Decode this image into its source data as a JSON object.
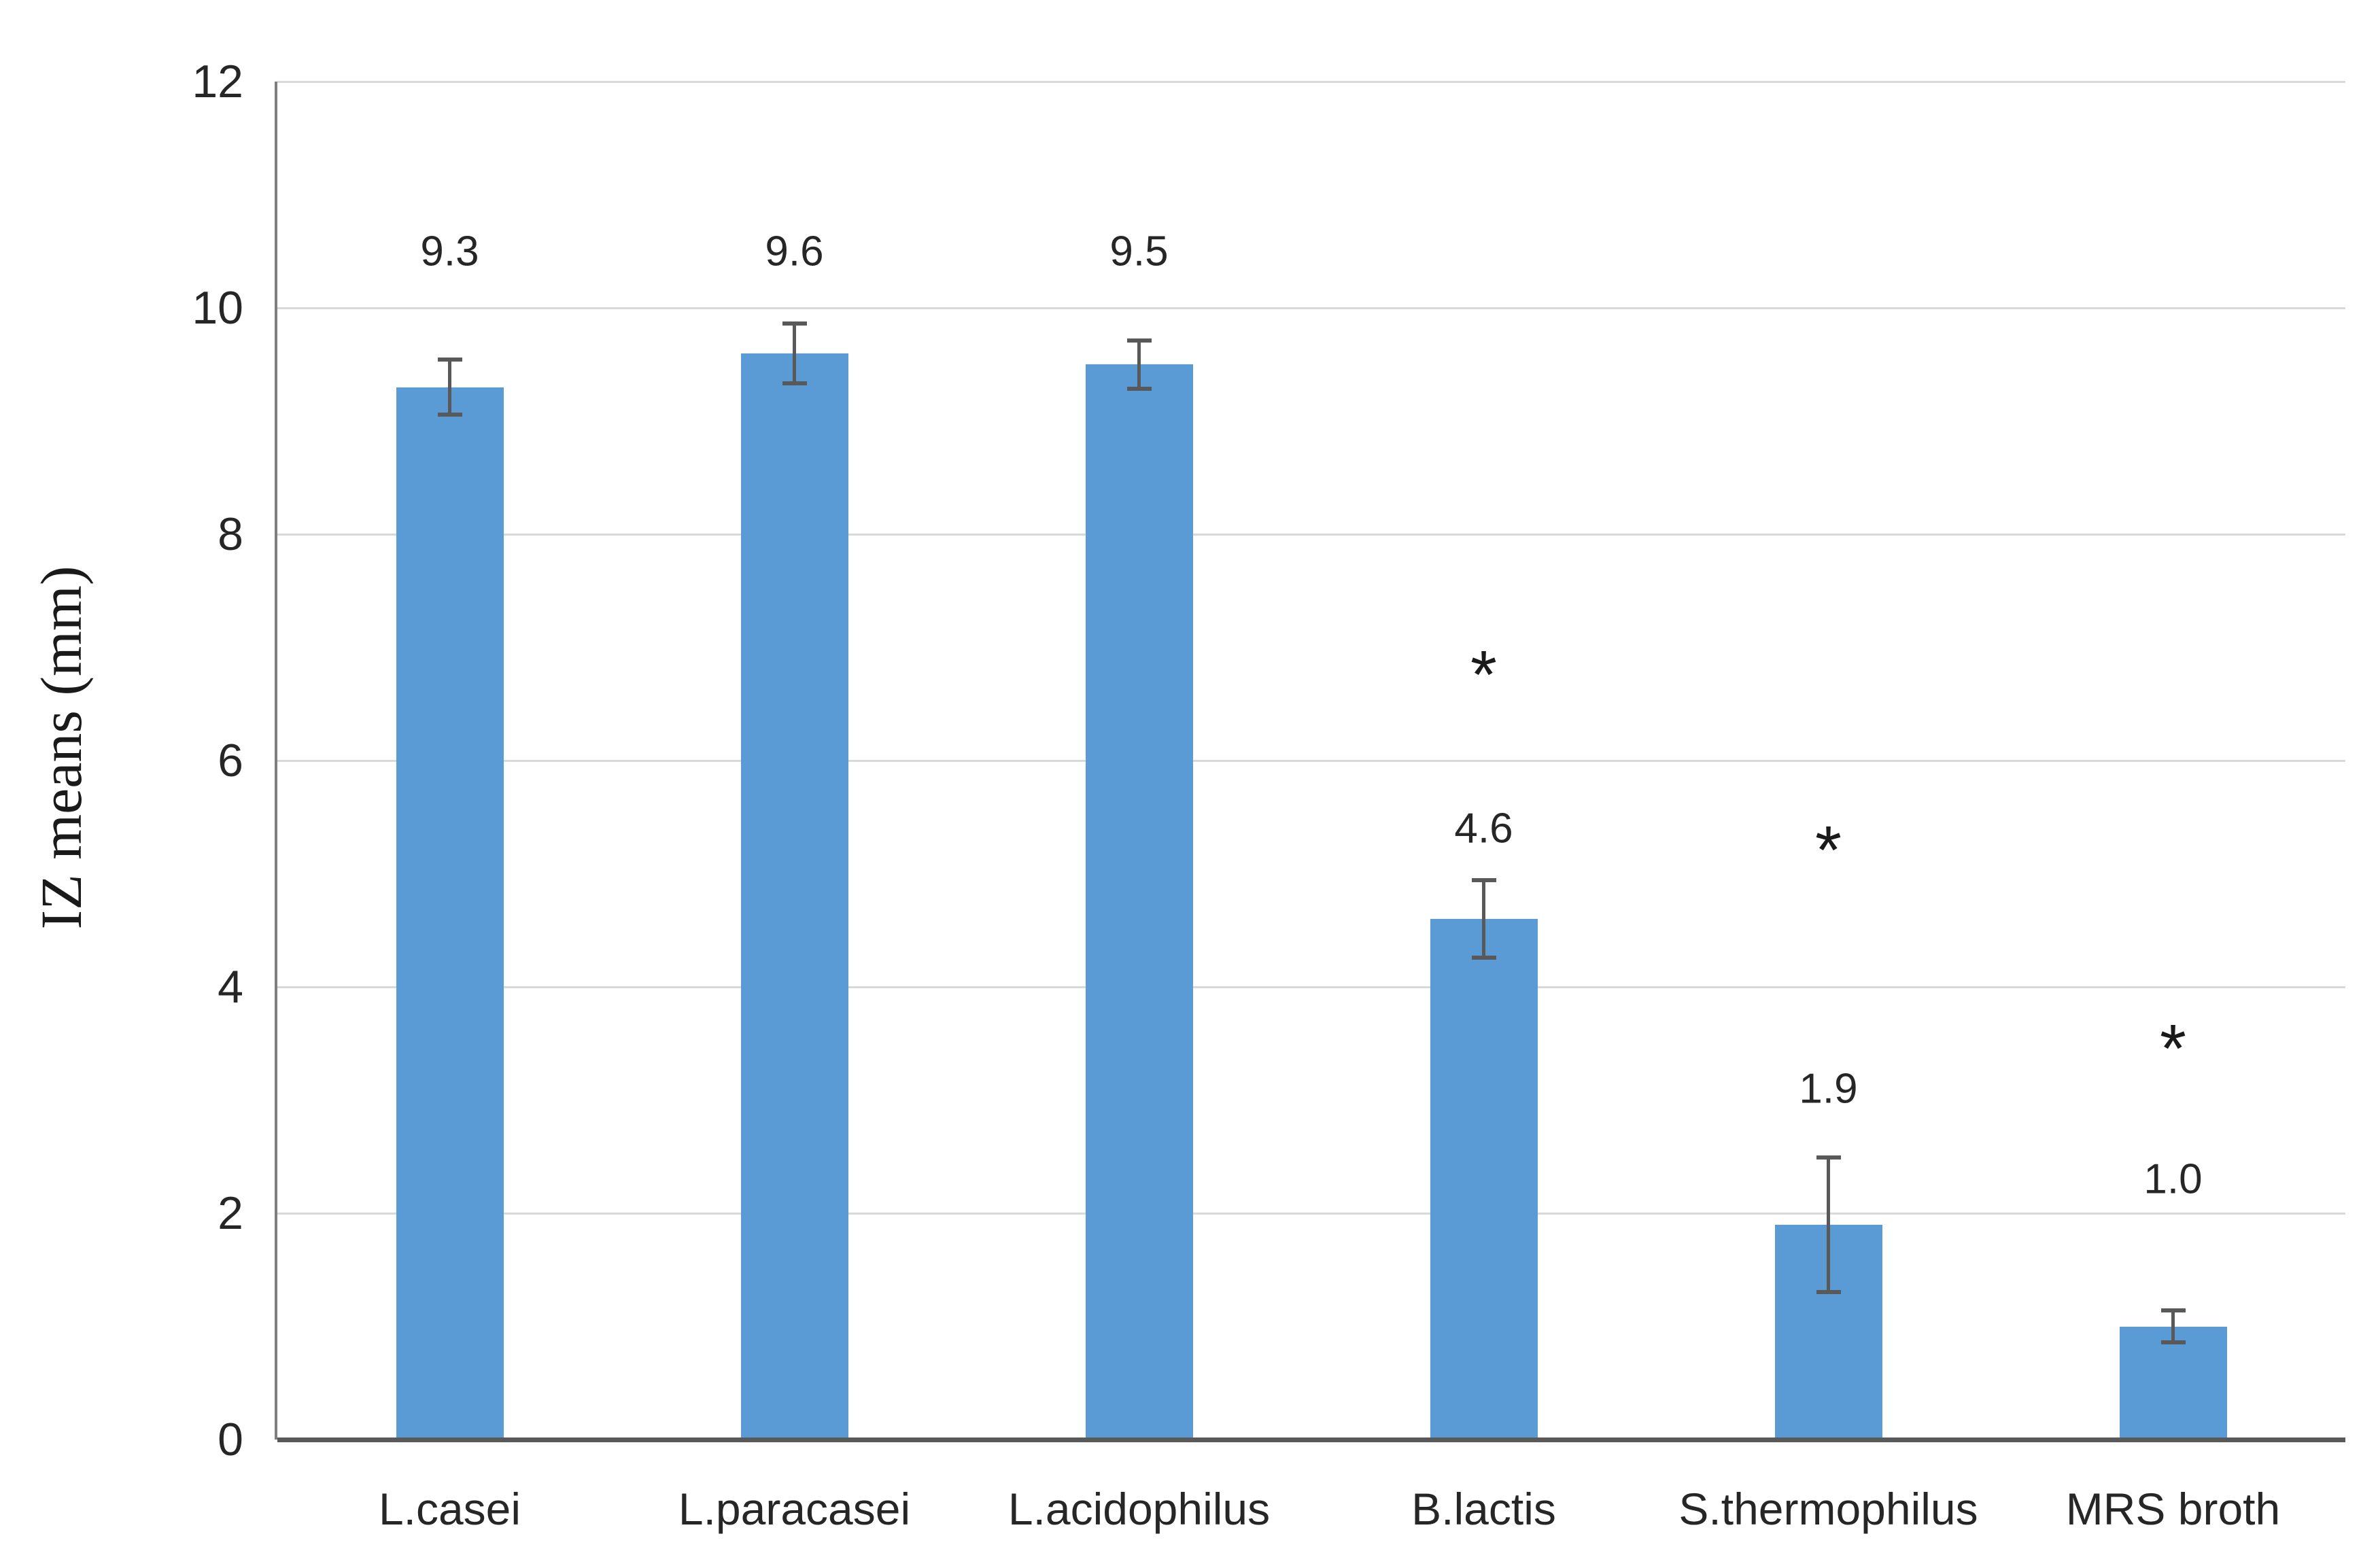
{
  "chart_data": {
    "type": "bar",
    "title": "",
    "xlabel": "",
    "ylabel": "IZ means (mm)",
    "categories": [
      "L.casei",
      "L.paracasei",
      "L.acidophilus",
      "B.lactis",
      "S.thermophilus",
      "MRS broth"
    ],
    "values": [
      9.3,
      9.6,
      9.5,
      4.6,
      1.9,
      1.0
    ],
    "value_labels": [
      "9.3",
      "9.6",
      "9.5",
      "4.6",
      "1.9",
      "1.0"
    ],
    "errors": [
      0.25,
      0.27,
      0.22,
      0.35,
      0.6,
      0.15
    ],
    "significance": [
      "",
      "",
      "",
      "*",
      "*",
      "*"
    ],
    "value_label_y": [
      10.5,
      10.5,
      10.5,
      5.4,
      3.1,
      2.3
    ],
    "asterisk_y": [
      null,
      null,
      null,
      6.9,
      5.35,
      3.6
    ],
    "ylim": [
      0,
      12
    ],
    "yticks": [
      0,
      2,
      4,
      6,
      8,
      10,
      12
    ],
    "grid": "horizontal",
    "legend": "none",
    "bar_color": "#5B9BD5",
    "error_bar_color": "#595959",
    "gridline_color": "#D9D9D9",
    "x_axis_color": "#595959",
    "y_axis_color": "#7f7f7f",
    "text_color": "#262626"
  }
}
